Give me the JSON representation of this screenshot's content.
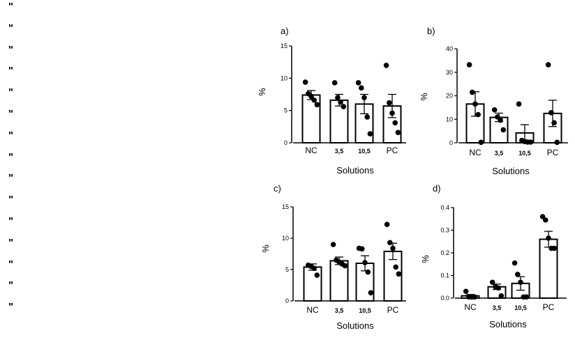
{
  "left_marks": [
    "\"",
    "\"",
    "\"",
    "\"",
    "\"",
    "\"",
    "\"",
    "\"",
    "\"",
    "\"",
    "\"",
    "\"",
    "\"",
    "\"",
    "\""
  ],
  "chart_data": [
    {
      "panel_label": "a)",
      "type": "bar",
      "categories": [
        "NC",
        "3,5",
        "10,5",
        "PC"
      ],
      "values": [
        7.4,
        6.6,
        6.0,
        5.7
      ],
      "sem": [
        0.7,
        0.9,
        1.5,
        1.8
      ],
      "points": [
        [
          9.4,
          7.6,
          7.2,
          6.6,
          5.9
        ],
        [
          9.3,
          7.0,
          6.3,
          5.6
        ],
        [
          9.3,
          8.5,
          7.0,
          4.0,
          1.4
        ],
        [
          12.0,
          6.2,
          4.6,
          3.1,
          1.6
        ]
      ],
      "xlabel": "Solutions",
      "ylabel": "%",
      "ylim": [
        0,
        15
      ],
      "yticks": [
        "0",
        "5",
        "10",
        "15"
      ]
    },
    {
      "panel_label": "b)",
      "type": "bar",
      "categories": [
        "NC",
        "3,5",
        "10,5",
        "PC"
      ],
      "values": [
        16.5,
        10.8,
        4.2,
        12.5
      ],
      "sem": [
        5.2,
        1.8,
        3.5,
        5.6
      ],
      "points": [
        [
          33.2,
          21.5,
          16.5,
          12.0,
          0.2
        ],
        [
          14.0,
          11.0,
          9.6,
          5.5
        ],
        [
          16.5,
          1.0,
          0.5,
          0.3,
          0.3
        ],
        [
          33.2,
          12.8,
          8.5,
          0.2
        ]
      ],
      "xlabel": "Solutions",
      "ylabel": "%",
      "ylim": [
        0,
        40
      ],
      "yticks": [
        "0",
        "10",
        "20",
        "30",
        "40"
      ]
    },
    {
      "panel_label": "c)",
      "type": "bar",
      "categories": [
        "NC",
        "3,5",
        "10,5",
        "PC"
      ],
      "values": [
        5.4,
        6.4,
        6.0,
        7.9
      ],
      "sem": [
        0.5,
        0.6,
        1.2,
        1.3
      ],
      "points": [
        [
          5.7,
          5.5,
          5.2,
          4.1
        ],
        [
          9.0,
          6.5,
          6.2,
          5.9,
          5.6
        ],
        [
          8.4,
          8.3,
          6.1,
          4.6,
          1.3
        ],
        [
          12.2,
          9.3,
          8.4,
          5.4,
          4.3
        ]
      ],
      "xlabel": "Solutions",
      "ylabel": "%",
      "ylim": [
        0,
        15
      ],
      "yticks": [
        "0",
        "5",
        "10",
        "15"
      ]
    },
    {
      "panel_label": "d)",
      "type": "bar",
      "categories": [
        "NC",
        "3,5",
        "10,5",
        "PC"
      ],
      "values": [
        0.01,
        0.05,
        0.065,
        0.26
      ],
      "sem": [
        0.006,
        0.012,
        0.03,
        0.035
      ],
      "points": [
        [
          0.03,
          0.005,
          0.005,
          0.005
        ],
        [
          0.07,
          0.05,
          0.045,
          0.01
        ],
        [
          0.155,
          0.105,
          0.07,
          0.005,
          0.005
        ],
        [
          0.36,
          0.345,
          0.265,
          0.22,
          0.22
        ]
      ],
      "xlabel": "Solutions",
      "ylabel": "%",
      "ylim": [
        0,
        0.4
      ],
      "yticks": [
        "0.0",
        "0.1",
        "0.2",
        "0.3",
        "0.4"
      ]
    }
  ]
}
